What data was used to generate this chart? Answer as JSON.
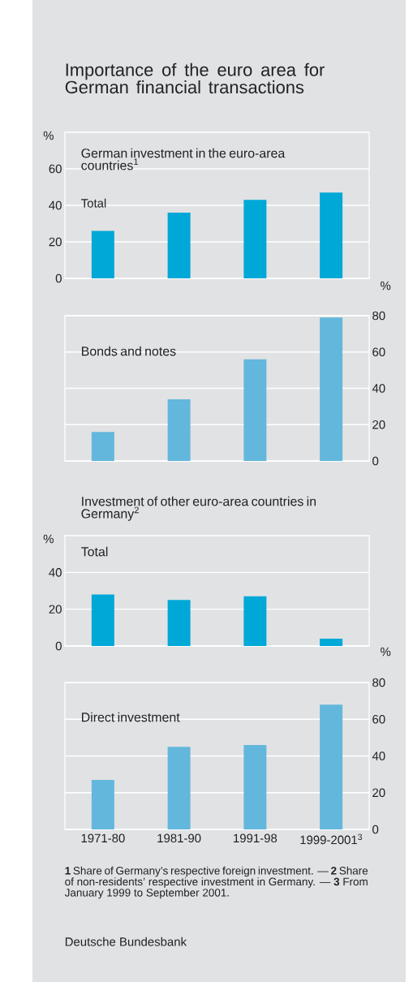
{
  "chart_data": [
    {
      "type": "bar",
      "title": "Importance of the euro area for German financial transactions",
      "subtitle": "German investment in the euro-area countries$^{1}$",
      "ylabel": "%",
      "annotations": [
        "Total"
      ],
      "categories": [
        null,
        null,
        null,
        null
      ],
      "values": [
        26,
        36,
        43,
        47
      ],
      "color": "#00a8d8",
      "ylim": [
        0,
        80
      ],
      "yticks": [
        0,
        20,
        40,
        60
      ],
      "grid": "y",
      "tick_labels": "y"
    },
    {
      "type": "bar",
      "title": "Bonds and notes",
      "ylabel": "%",
      "categories": [
        null,
        null,
        null,
        null
      ],
      "values": [
        16,
        34,
        56,
        79
      ],
      "color": "#63b7dc",
      "ylim": [
        0,
        80
      ],
      "yticks": [
        0,
        20,
        40,
        60,
        80
      ],
      "grid": "y",
      "tick_labels": "y"
    },
    {
      "type": "bar",
      "title": "Investment of other euro-area countries in Germany$^{2}$",
      "subtitle": "Total",
      "ylabel": "%",
      "categories": [
        null,
        null,
        null,
        null
      ],
      "values": [
        28,
        25,
        27,
        4
      ],
      "color": "#00a8d8",
      "ylim": [
        0,
        60
      ],
      "yticks": [
        0,
        20,
        40
      ],
      "grid": "y",
      "tick_labels": "y"
    },
    {
      "type": "bar",
      "title": "Direct investment",
      "ylabel": "%",
      "categories": [
        "1971-80",
        "1981-90",
        "1991-98",
        "1999-2001$^{3}$"
      ],
      "values": [
        27,
        45,
        46,
        68
      ],
      "color": "#63b7dc",
      "ylim": [
        0,
        80
      ],
      "yticks": [
        0,
        20,
        40,
        60,
        80
      ],
      "grid": "y",
      "annotations": [
        "**1** Share of Germany’s respective foreign investment. — **2** Share of non-residents’ respective investment in Germany. — **3** From January 1999 to September 2001.",
        "Deutsche Bundesbank"
      ]
    }
  ]
}
